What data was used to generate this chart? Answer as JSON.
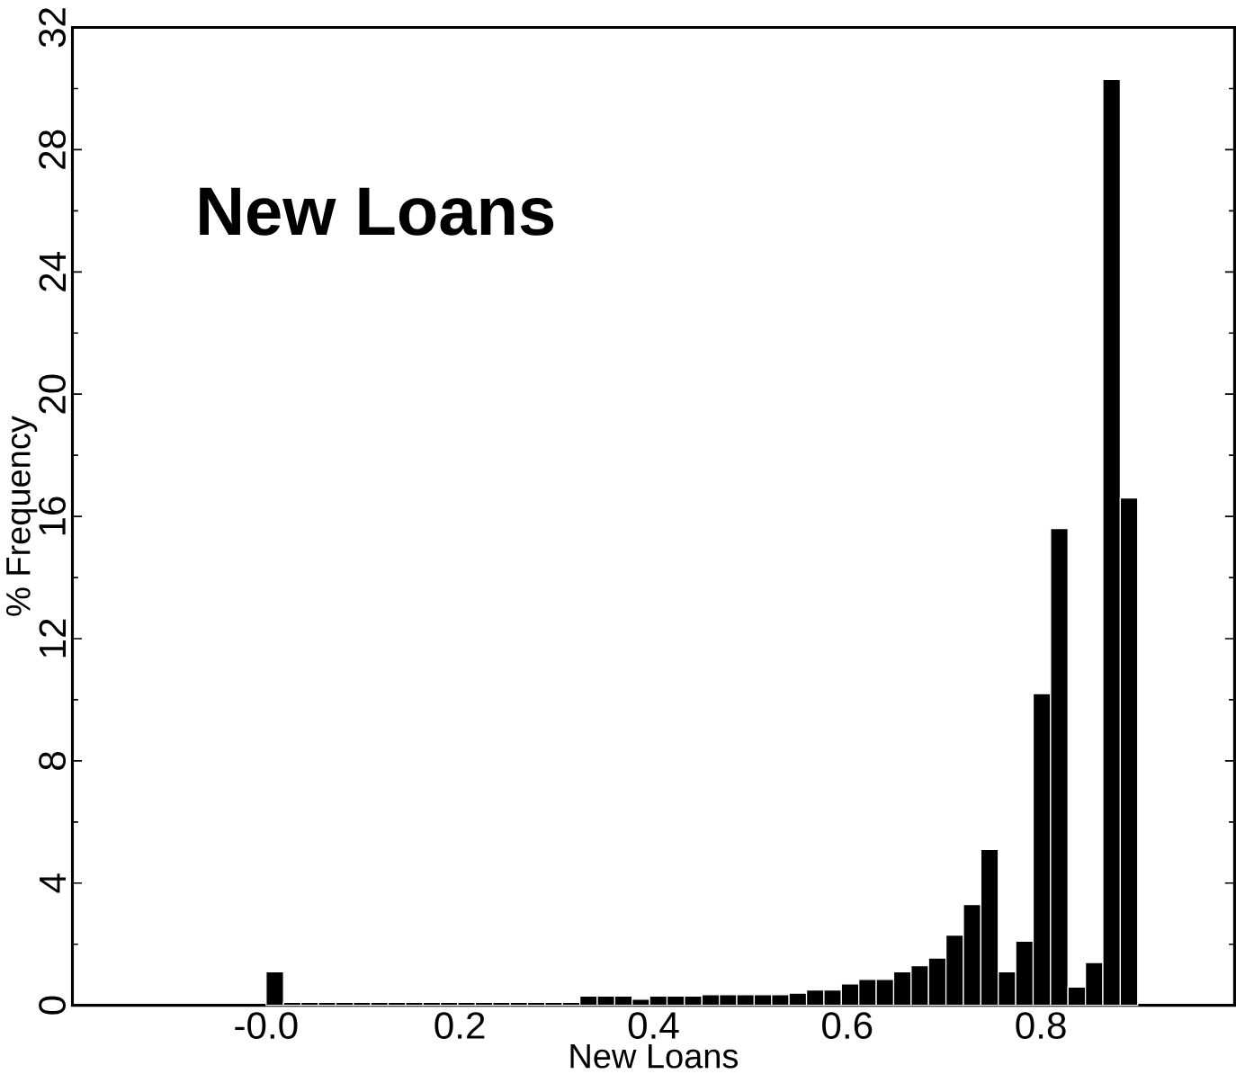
{
  "chart_data": {
    "type": "histogram",
    "title": "New Loans",
    "xlabel": "New Loans",
    "ylabel": "% Frequency",
    "color": "#000000",
    "bins": [
      0,
      0.018,
      0.036,
      0.054,
      0.072,
      0.09,
      0.108,
      0.126,
      0.144,
      0.162,
      0.18,
      0.198,
      0.216,
      0.234,
      0.252,
      0.27,
      0.288,
      0.306,
      0.324,
      0.342,
      0.36,
      0.378,
      0.396,
      0.414,
      0.432,
      0.45,
      0.468,
      0.486,
      0.504,
      0.522,
      0.54,
      0.558,
      0.576,
      0.594,
      0.612,
      0.63,
      0.648,
      0.666,
      0.684,
      0.702,
      0.72,
      0.738,
      0.756,
      0.774,
      0.792,
      0.81,
      0.828,
      0.846,
      0.864,
      0.882,
      0.9
    ],
    "values": [
      1.1,
      0.1,
      0.1,
      0.1,
      0.1,
      0.1,
      0.1,
      0.1,
      0.1,
      0.1,
      0.1,
      0.1,
      0.1,
      0.1,
      0.1,
      0.1,
      0.1,
      0.1,
      0.3,
      0.3,
      0.3,
      0.2,
      0.3,
      0.3,
      0.3,
      0.35,
      0.35,
      0.35,
      0.35,
      0.35,
      0.4,
      0.5,
      0.5,
      0.7,
      0.85,
      0.85,
      1.1,
      1.3,
      1.55,
      2.3,
      3.3,
      5.1,
      1.1,
      2.1,
      10.2,
      15.6,
      0.6,
      1.4,
      30.3,
      16.6
    ],
    "xlim": [
      -0.2,
      1.0
    ],
    "ylim": [
      0,
      32
    ],
    "xticks": [
      {
        "value": 0,
        "label": "-0.0"
      },
      0.2,
      0.4,
      0.6,
      0.8
    ],
    "yticks": [
      0,
      4,
      8,
      12,
      16,
      20,
      24,
      28,
      32
    ],
    "grid": false
  }
}
